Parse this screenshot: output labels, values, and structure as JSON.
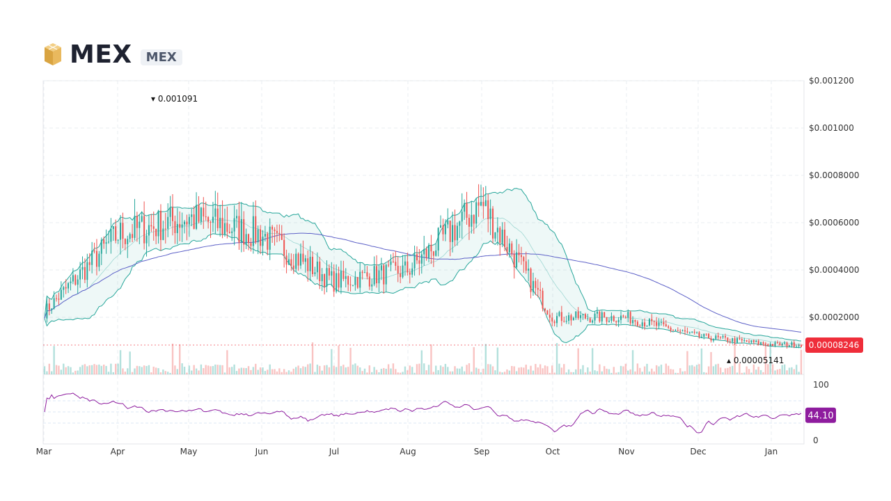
{
  "header": {
    "title": "MEX",
    "symbol": "MEX",
    "logo_icon": "gold-cube-logo"
  },
  "colors": {
    "up": "#26a69a",
    "down": "#ef5350",
    "band": "#26a69a",
    "sma": "#5b5fc7",
    "rsi": "#8e1c9e",
    "price_badge": "#ef2d3a",
    "rsi_badge": "#8e1c9e"
  },
  "chart_data": [
    {
      "type": "candlestick",
      "title": "",
      "x_tick_labels": [
        "Mar",
        "Apr",
        "May",
        "Jun",
        "Jul",
        "Aug",
        "Sep",
        "Oct",
        "Nov",
        "Dec",
        "Jan"
      ],
      "y_tick_labels": [
        "$0.001200",
        "$0.001000",
        "$0.0008000",
        "$0.0006000",
        "$0.0004000",
        "$0.0002000"
      ],
      "y_ticks": [
        0.0012,
        0.001,
        0.0008,
        0.0006,
        0.0004,
        0.0002
      ],
      "ylim": [
        0,
        0.0012
      ],
      "grid": true,
      "indicators": [
        "Bollinger Bands",
        "moving average",
        "volume"
      ],
      "max_annotation": {
        "label": "0.001091",
        "value": 0.001091,
        "month": "Apr"
      },
      "min_annotation": {
        "label": "0.00005141",
        "value": 5.141e-05,
        "month": "Dec"
      },
      "last_price_label": "0.00008246",
      "last_price": 8.246e-05,
      "close_series_approx": {
        "months": [
          "Mar",
          "Apr",
          "May",
          "Jun",
          "Jul",
          "Aug",
          "Sep",
          "Oct",
          "Nov",
          "Dec",
          "Jan"
        ],
        "values": [
          0.00022,
          0.00055,
          0.00062,
          0.00055,
          0.00035,
          0.0004,
          0.00068,
          0.0002,
          0.0002,
          0.00012,
          8.5e-05
        ]
      }
    },
    {
      "type": "line",
      "title": "",
      "y_tick_labels": [
        "100",
        "0"
      ],
      "ylim": [
        0,
        100
      ],
      "guide_levels": [
        70,
        50,
        30
      ],
      "last_value_label": "44.10",
      "last_value": 44.1
    }
  ]
}
